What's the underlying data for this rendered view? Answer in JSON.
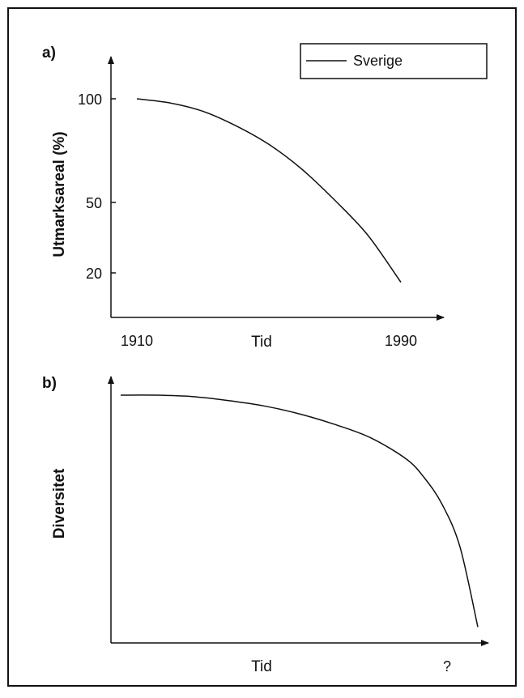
{
  "chart_data": [
    {
      "type": "line",
      "panel_label": "a)",
      "xlabel": "Tid",
      "ylabel": "Utmarksareal (%)",
      "x_tick_labels": [
        "1910",
        "1990"
      ],
      "y_tick_labels": [
        "100",
        "50",
        "20"
      ],
      "xlim": [
        1910,
        1990
      ],
      "legend": {
        "position": "top-right",
        "entries": [
          "Sverige"
        ]
      },
      "series": [
        {
          "name": "Sverige",
          "x": [
            1910,
            1920,
            1930,
            1940,
            1950,
            1960,
            1970,
            1980,
            1990
          ],
          "y": [
            100,
            98,
            94,
            87,
            78,
            66,
            51,
            36,
            16
          ]
        }
      ],
      "grid": false
    },
    {
      "type": "line",
      "panel_label": "b)",
      "xlabel": "Tid",
      "ylabel": "Diversitet",
      "x_tick_labels": [
        "?"
      ],
      "grid": false,
      "series": [
        {
          "x": [
            0,
            10,
            20,
            30,
            40,
            50,
            60,
            70,
            80,
            85,
            90,
            95,
            100
          ],
          "y": [
            0.93,
            0.93,
            0.925,
            0.91,
            0.89,
            0.86,
            0.82,
            0.77,
            0.69,
            0.62,
            0.52,
            0.36,
            0.06
          ]
        }
      ]
    }
  ]
}
